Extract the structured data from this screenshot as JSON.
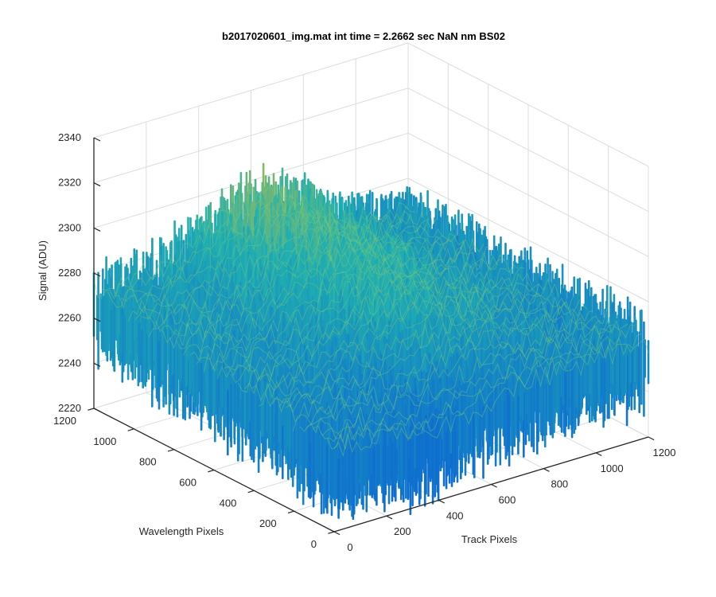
{
  "chart_data": {
    "type": "surface",
    "title": "b2017020601_img.mat int time = 2.2662 sec  NaN nm BS02",
    "xlabel": "Track Pixels",
    "ylabel": "Wavelength Pixels",
    "zlabel": "Signal (ADU)",
    "xlim": [
      0,
      1200
    ],
    "ylim": [
      0,
      1200
    ],
    "zlim": [
      2220,
      2340
    ],
    "x_ticks": [
      "0",
      "200",
      "400",
      "600",
      "800",
      "1000",
      "1200"
    ],
    "y_ticks": [
      "0",
      "200",
      "400",
      "600",
      "800",
      "1000",
      "1200"
    ],
    "z_ticks": [
      "2220",
      "2240",
      "2260",
      "2280",
      "2300",
      "2320",
      "2340"
    ],
    "grid": true,
    "colormap": "parula",
    "colors": {
      "low": "#0f6fcf",
      "mid": "#20b0b0",
      "high": "#e8c21f"
    },
    "surface": {
      "x_range": [
        0,
        1200
      ],
      "y_range": [
        0,
        1200
      ],
      "corner_values": {
        "x0_y0": 2258,
        "x1200_y0": 2262,
        "x0_y1200": 2272,
        "x1200_y1200": 2266
      },
      "ridge": {
        "x": 600,
        "peak": 2292
      },
      "noise_amplitude": 22
    }
  }
}
